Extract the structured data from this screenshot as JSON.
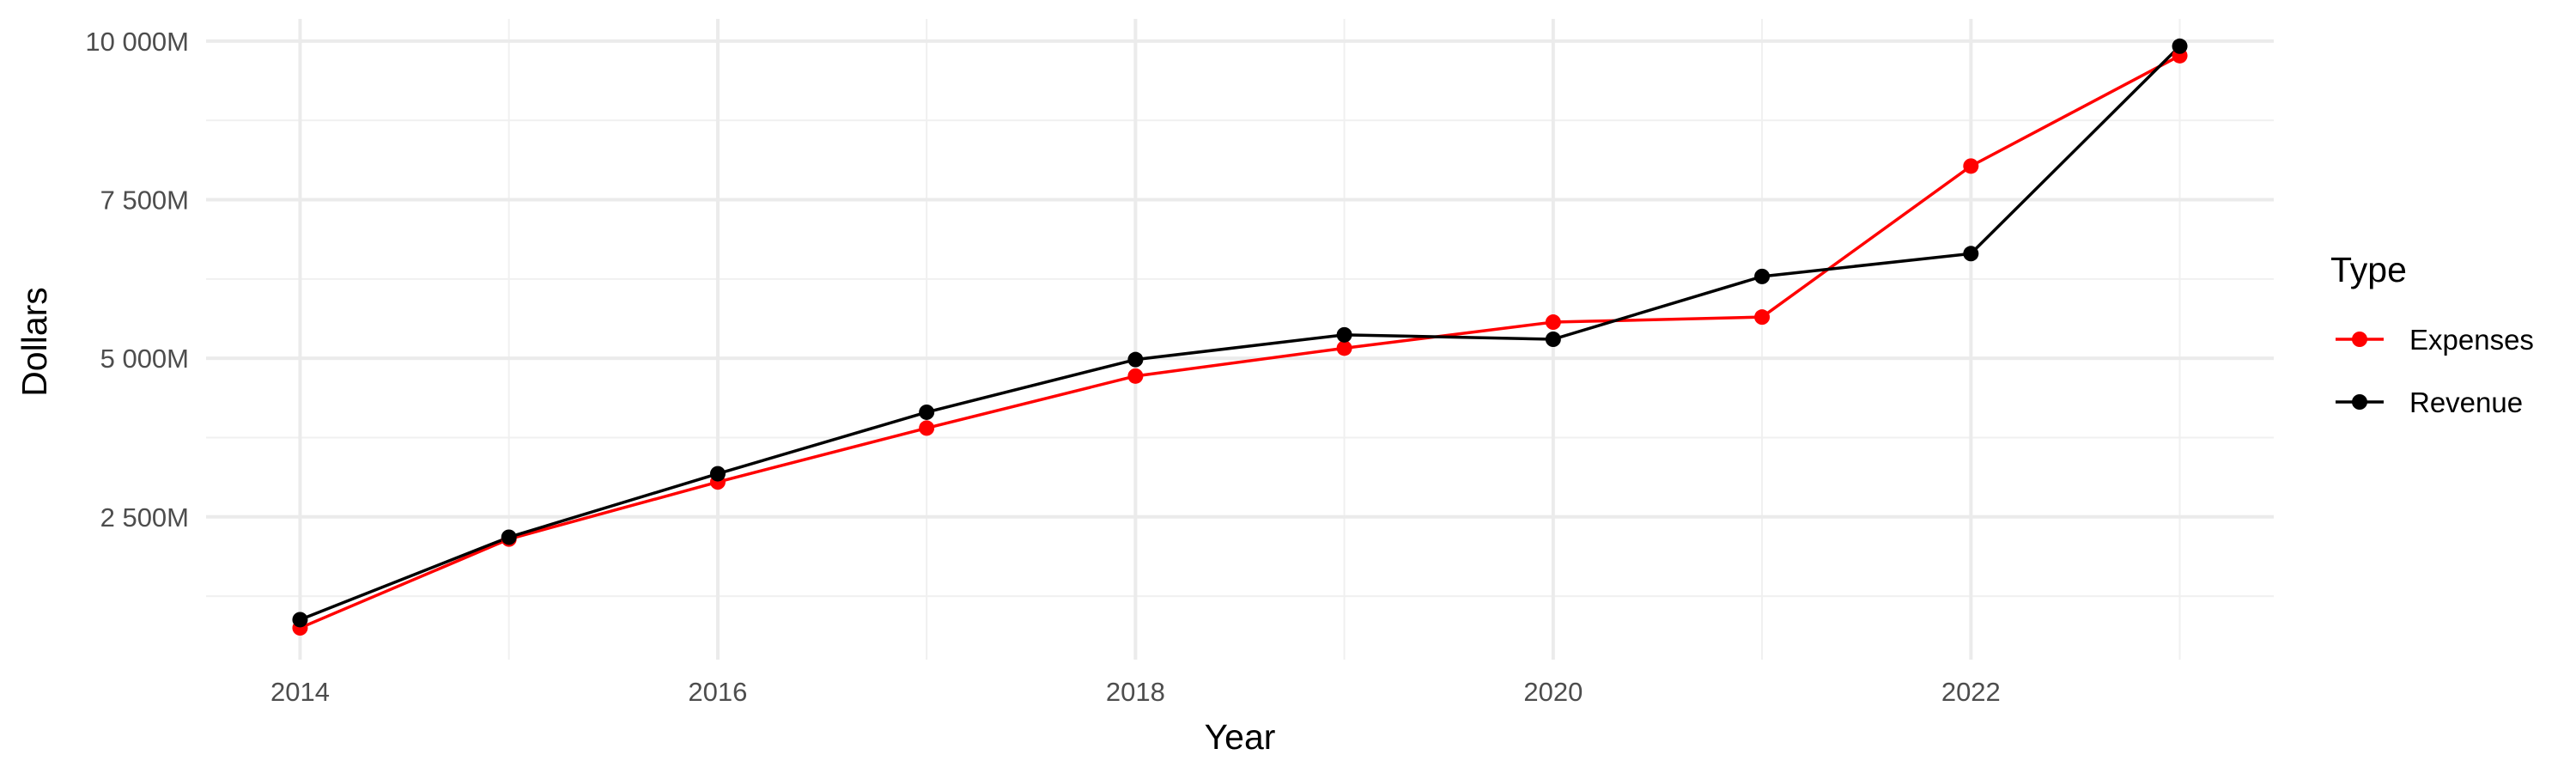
{
  "chart_data": {
    "type": "line",
    "title": "",
    "xlabel": "Year",
    "ylabel": "Dollars",
    "x": [
      2014,
      2015,
      2016,
      2017,
      2018,
      2019,
      2020,
      2021,
      2022,
      2023
    ],
    "xticks": [
      2014,
      2016,
      2018,
      2020,
      2022
    ],
    "xtick_labels": [
      "2014",
      "2016",
      "2018",
      "2020",
      "2022"
    ],
    "xlim": [
      2013.55,
      2023.45
    ],
    "yticks": [
      2500,
      5000,
      7500,
      10000
    ],
    "ytick_labels": [
      "2 500M",
      "5 000M",
      "7 500M",
      "10 000M"
    ],
    "ylim": [
      250,
      10350
    ],
    "grid": true,
    "legend": {
      "title": "Type",
      "position": "right"
    },
    "series": [
      {
        "name": "Expenses",
        "color": "#ff0000",
        "values": [
          750,
          2150,
          3050,
          3900,
          4720,
          5160,
          5570,
          5650,
          8030,
          9770
        ]
      },
      {
        "name": "Revenue",
        "color": "#000000",
        "values": [
          880,
          2180,
          3180,
          4150,
          4980,
          5370,
          5300,
          6290,
          6650,
          9920
        ]
      }
    ]
  }
}
